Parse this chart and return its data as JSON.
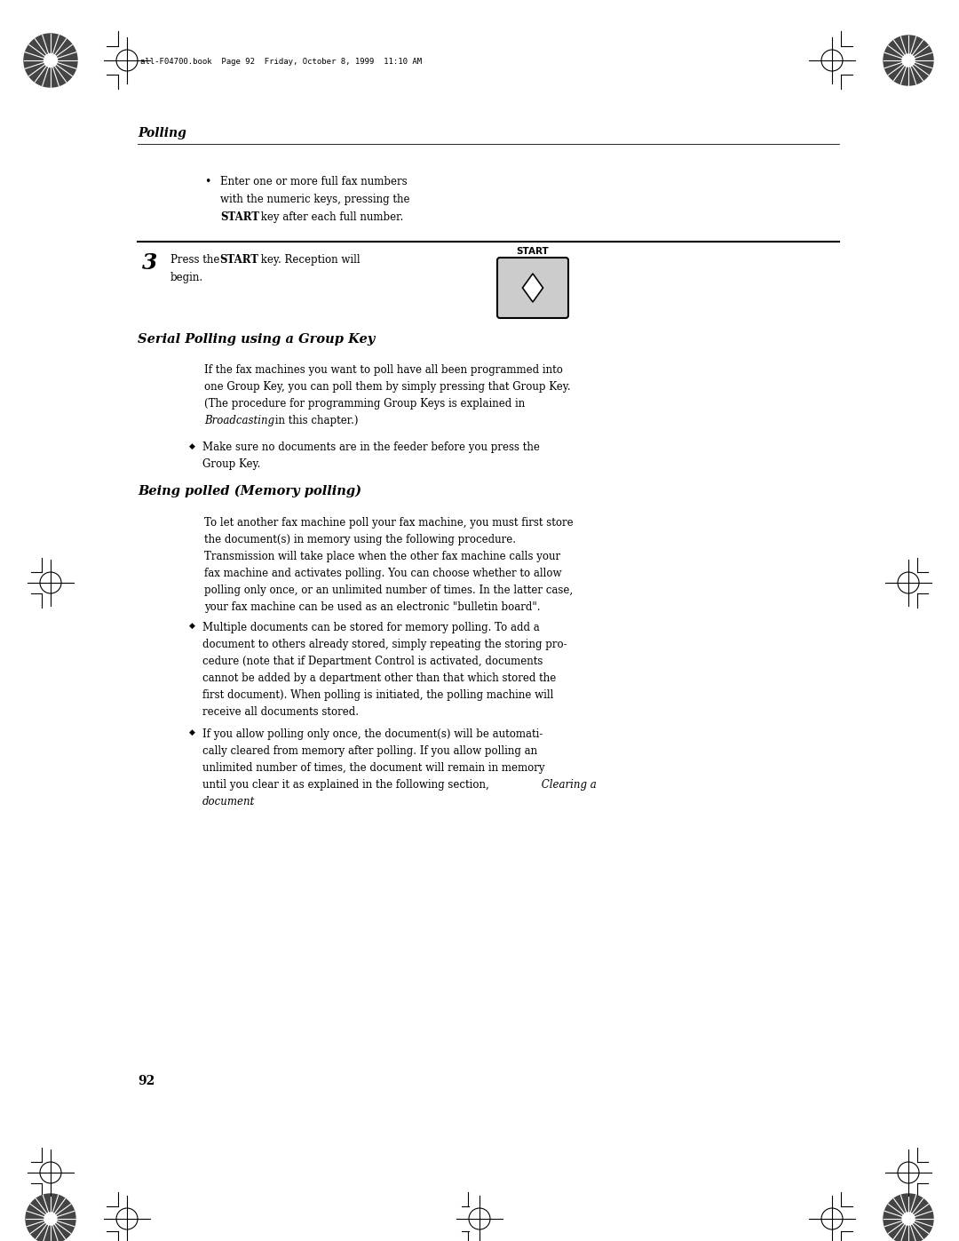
{
  "bg_color": "#ffffff",
  "page_width": 10.8,
  "page_height": 13.97,
  "dpi": 100,
  "header_text": "all-F04700.book  Page 92  Friday, October 8, 1999  11:10 AM",
  "section_label": "Polling",
  "page_number": "92",
  "section1_title": "Serial Polling using a Group Key",
  "section2_title": "Being polled (Memory polling)",
  "start_label": "START"
}
